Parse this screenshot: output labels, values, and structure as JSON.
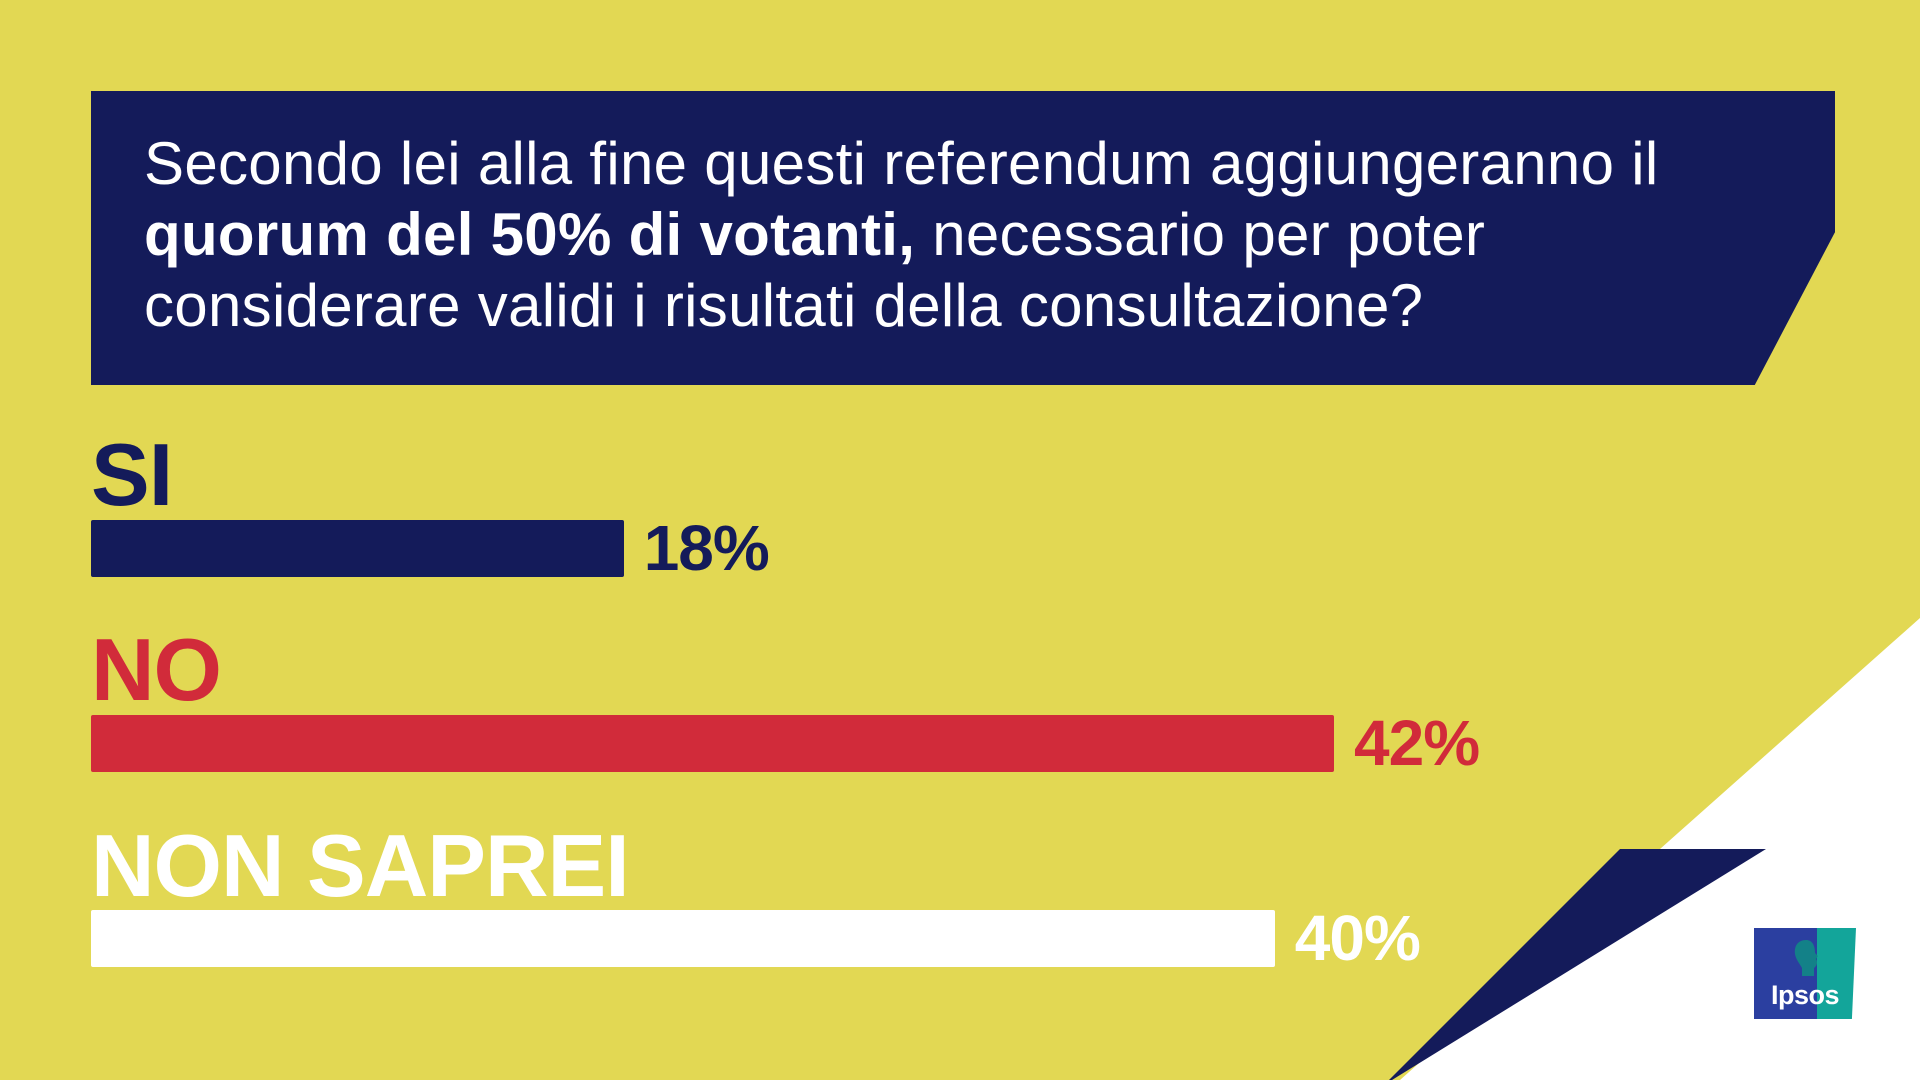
{
  "question": {
    "part1": "Secondo lei alla fine questi referendum aggiungeranno il ",
    "bold": "quorum del 50% di votanti,",
    "part2": " necessario per poter considerare validi i risultati della consultazione?"
  },
  "chart_data": {
    "type": "bar",
    "orientation": "horizontal",
    "categories": [
      "SI",
      "NO",
      "NON SAPREI"
    ],
    "values": [
      18,
      42,
      40
    ],
    "value_labels": [
      "18%",
      "42%",
      "40%"
    ],
    "unit": "%",
    "xlim": [
      0,
      100
    ],
    "grid": false,
    "colors": [
      "#141b5a",
      "#d12b3a",
      "#ffffff"
    ]
  },
  "colors": {
    "background": "#e2d853",
    "navy": "#141b5a",
    "red": "#d12b3a",
    "white": "#ffffff",
    "logo_blue": "#2b3fa0",
    "logo_teal": "#13a59a"
  },
  "logo": {
    "text": "Ipsos",
    "icon": "ipsos-head-icon"
  }
}
